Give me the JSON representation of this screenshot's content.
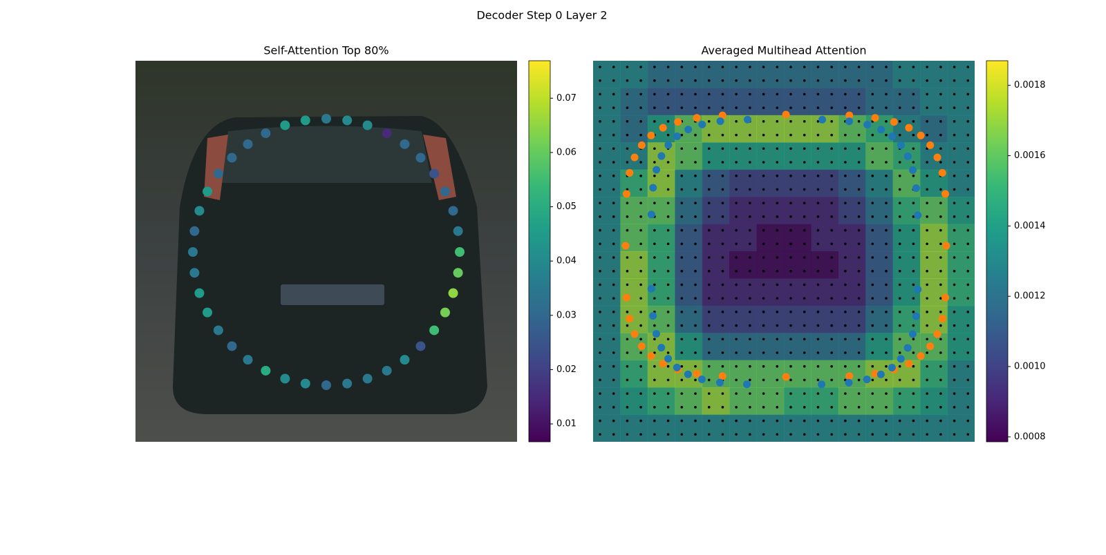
{
  "title": "Decoder Step 0 Layer 2",
  "chart_data": [
    {
      "type": "scatter",
      "title": "Self-Attention Top 80%",
      "colormap": "viridis",
      "values": [
        0.035,
        0.04,
        0.04,
        0.015,
        0.03,
        0.03,
        0.025,
        0.03,
        0.03,
        0.035,
        0.055,
        0.06,
        0.065,
        0.062,
        0.055,
        0.025,
        0.04,
        0.035,
        0.035,
        0.035,
        0.03,
        0.04,
        0.04,
        0.05,
        0.035,
        0.03,
        0.035,
        0.045,
        0.045,
        0.035,
        0.035,
        0.03,
        0.04,
        0.045,
        0.03,
        0.03,
        0.03,
        0.03,
        0.045,
        0.045
      ],
      "clim": [
        0.0067,
        0.0769
      ],
      "cticks": [
        0.01,
        0.02,
        0.03,
        0.04,
        0.05,
        0.06,
        0.07
      ]
    },
    {
      "type": "heatmap",
      "title": "Averaged Multihead Attention",
      "colormap": "viridis",
      "marker_colors": [
        "#ff7f0e",
        "#1f77b4"
      ],
      "z": [
        [
          0.0013,
          0.0013,
          0.0012,
          0.0012,
          0.0012,
          0.0012,
          0.0012,
          0.0012,
          0.0012,
          0.0012,
          0.0012,
          0.0013,
          0.0013,
          0.0013
        ],
        [
          0.0013,
          0.0012,
          0.0011,
          0.0011,
          0.0011,
          0.0011,
          0.0011,
          0.0011,
          0.0011,
          0.0011,
          0.0012,
          0.0012,
          0.0013,
          0.0013
        ],
        [
          0.0013,
          0.0012,
          0.0014,
          0.0016,
          0.0017,
          0.0017,
          0.0017,
          0.0017,
          0.0017,
          0.0016,
          0.0015,
          0.0013,
          0.0012,
          0.0013
        ],
        [
          0.0013,
          0.0013,
          0.0017,
          0.0016,
          0.0014,
          0.0014,
          0.0014,
          0.0014,
          0.0014,
          0.0014,
          0.0016,
          0.0015,
          0.0013,
          0.0013
        ],
        [
          0.0013,
          0.0015,
          0.0017,
          0.0013,
          0.0011,
          0.001,
          0.001,
          0.001,
          0.001,
          0.0011,
          0.0013,
          0.0016,
          0.0014,
          0.0013
        ],
        [
          0.0013,
          0.0016,
          0.0016,
          0.0012,
          0.001,
          0.0009,
          0.0009,
          0.0009,
          0.0009,
          0.001,
          0.0012,
          0.0015,
          0.0016,
          0.0014
        ],
        [
          0.0013,
          0.0016,
          0.0015,
          0.0011,
          0.0009,
          0.0009,
          0.0008,
          0.0008,
          0.0009,
          0.0009,
          0.0011,
          0.0014,
          0.0017,
          0.0015
        ],
        [
          0.0013,
          0.0017,
          0.0015,
          0.0011,
          0.0009,
          0.0008,
          0.0008,
          0.0008,
          0.0008,
          0.0009,
          0.0011,
          0.0014,
          0.0017,
          0.0015
        ],
        [
          0.0013,
          0.0017,
          0.0015,
          0.0011,
          0.0009,
          0.0009,
          0.0009,
          0.0009,
          0.0009,
          0.0009,
          0.0011,
          0.0014,
          0.0017,
          0.0015
        ],
        [
          0.0013,
          0.0017,
          0.0016,
          0.0012,
          0.001,
          0.001,
          0.001,
          0.001,
          0.001,
          0.001,
          0.0012,
          0.0015,
          0.0017,
          0.0014
        ],
        [
          0.0013,
          0.0016,
          0.0017,
          0.0014,
          0.0012,
          0.0012,
          0.0012,
          0.0012,
          0.0012,
          0.0012,
          0.0014,
          0.0016,
          0.0016,
          0.0014
        ],
        [
          0.0013,
          0.0015,
          0.0017,
          0.0017,
          0.0016,
          0.0016,
          0.0016,
          0.0016,
          0.0016,
          0.0016,
          0.0017,
          0.0017,
          0.0015,
          0.0013
        ],
        [
          0.0013,
          0.0014,
          0.0015,
          0.0016,
          0.0017,
          0.0016,
          0.0016,
          0.0015,
          0.0015,
          0.0016,
          0.0016,
          0.0015,
          0.0014,
          0.0013
        ],
        [
          0.0013,
          0.0013,
          0.0013,
          0.0013,
          0.0013,
          0.0013,
          0.0013,
          0.0013,
          0.0013,
          0.0013,
          0.0013,
          0.0013,
          0.0013,
          0.0013
        ]
      ],
      "clim": [
        0.000786,
        0.00187
      ],
      "cticks": [
        {
          "value": 0.0008,
          "label": "0.0008"
        },
        {
          "value": 0.001,
          "label": "0.0010"
        },
        0.0012,
        0.0014,
        0.0016,
        0.0018
      ]
    }
  ]
}
